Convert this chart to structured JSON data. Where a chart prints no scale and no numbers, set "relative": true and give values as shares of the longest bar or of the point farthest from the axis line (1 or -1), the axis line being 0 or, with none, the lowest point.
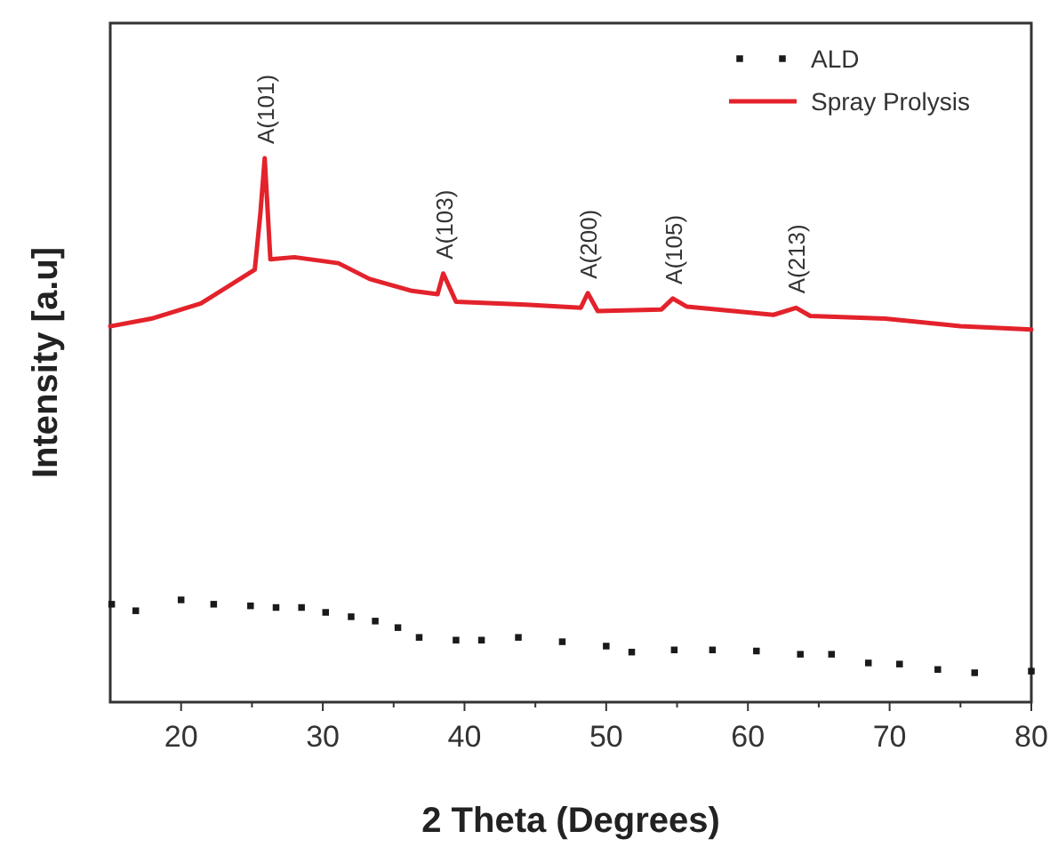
{
  "chart_data": {
    "type": "line",
    "relative": true,
    "xlabel": "2 Theta (Degrees)",
    "ylabel": "Intensity [a.u]",
    "xlim": [
      15,
      80
    ],
    "xticks": [
      20,
      {
        "value": 25,
        "label": null
      },
      30,
      {
        "value": 35,
        "label": null
      },
      40,
      {
        "value": 45,
        "label": null
      },
      50,
      {
        "value": 55,
        "label": null
      },
      60,
      {
        "value": 65,
        "label": null
      },
      70,
      {
        "value": 75,
        "label": null
      },
      80
    ],
    "tick_labels": "x",
    "legend": "top right",
    "grid": false,
    "series": [
      {
        "name": "ALD",
        "type": "scatter",
        "marker": "square",
        "color": "#1a1a1a",
        "x": [
          15.1,
          16.8,
          20,
          22.3,
          24.9,
          26.7,
          28.5,
          30.2,
          32,
          33.7,
          35.3,
          36.8,
          39.4,
          41.2,
          43.8,
          46.9,
          50,
          51.8,
          54.8,
          57.5,
          60.6,
          63.7,
          65.9,
          68.5,
          70.7,
          73.4,
          76,
          80
        ],
        "values": [
          0.18,
          0.168,
          0.188,
          0.18,
          0.177,
          0.174,
          0.174,
          0.165,
          0.157,
          0.149,
          0.137,
          0.119,
          0.114,
          0.114,
          0.119,
          0.111,
          0.103,
          0.092,
          0.096,
          0.096,
          0.094,
          0.088,
          0.088,
          0.072,
          0.07,
          0.06,
          0.054,
          0.057
        ]
      },
      {
        "name": "Spray Prolysis",
        "marker": "none",
        "line_style": "solid",
        "color": "#e3222b",
        "x": [
          15,
          17.9,
          21.4,
          25.2,
          25.6,
          25.9,
          26.3,
          28,
          31.1,
          33.3,
          36.3,
          38.1,
          38.5,
          39.4,
          44.3,
          48.2,
          48.7,
          49.4,
          53.9,
          54.7,
          55.7,
          61.8,
          63.4,
          64.4,
          69.7,
          75,
          80
        ],
        "values": [
          0.691,
          0.705,
          0.733,
          0.795,
          0.9,
          1,
          0.814,
          0.818,
          0.807,
          0.778,
          0.756,
          0.75,
          0.788,
          0.736,
          0.731,
          0.725,
          0.752,
          0.719,
          0.722,
          0.742,
          0.727,
          0.712,
          0.725,
          0.71,
          0.705,
          0.691,
          0.685
        ]
      }
    ],
    "annotations": [
      {
        "text": "A(101)",
        "x": 25.9,
        "y": 1
      },
      {
        "text": "A(103)",
        "x": 38.5,
        "y": 0.788
      },
      {
        "text": "A(200)",
        "x": 48.7,
        "y": 0.752
      },
      {
        "text": "A(105)",
        "x": 54.7,
        "y": 0.742
      },
      {
        "text": "A(213)",
        "x": 63.4,
        "y": 0.725
      }
    ]
  }
}
